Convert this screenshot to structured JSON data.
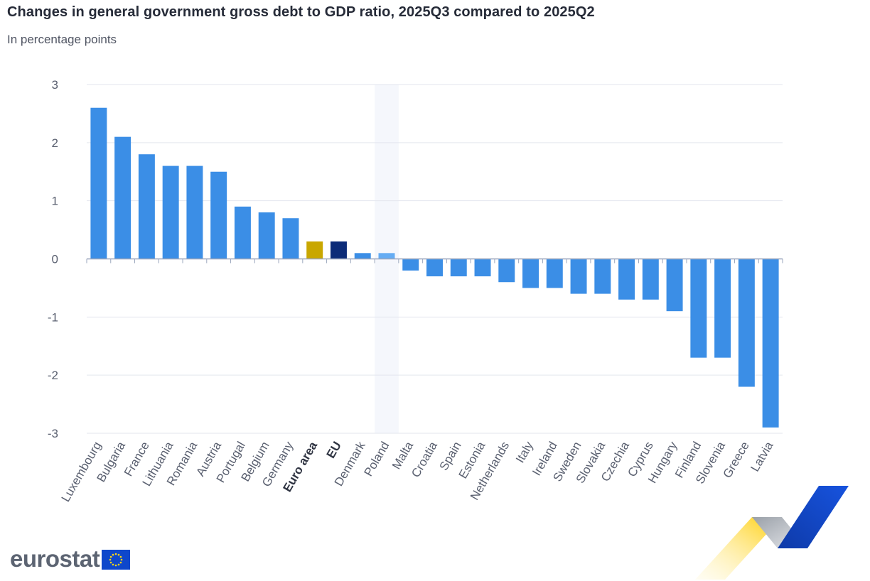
{
  "header": {
    "title": "Changes in general government gross debt to GDP ratio, 2025Q3 compared to 2025Q2",
    "subtitle": "In percentage points"
  },
  "logo": {
    "text": "eurostat"
  },
  "colors": {
    "default_bar": "#3b8ee6",
    "euro_area_bar": "#c9a700",
    "eu_bar": "#0c2b78",
    "highlighted_bar": "#65acf3",
    "grid": "#e3e6ee",
    "axis": "#9aa6bd",
    "highlight_band": "#f5f7fc"
  },
  "chart_data": {
    "type": "bar",
    "title": "Changes in general government gross debt to GDP ratio, 2025Q3 compared to 2025Q2",
    "subtitle": "In percentage points",
    "categories": [
      "Luxembourg",
      "Bulgaria",
      "France",
      "Lithuania",
      "Romania",
      "Austria",
      "Portugal",
      "Belgium",
      "Germany",
      "Euro area",
      "EU",
      "Denmark",
      "Poland",
      "Malta",
      "Croatia",
      "Spain",
      "Estonia",
      "Netherlands",
      "Italy",
      "Ireland",
      "Sweden",
      "Slovakia",
      "Czechia",
      "Cyprus",
      "Hungary",
      "Finland",
      "Slovenia",
      "Greece",
      "Latvia"
    ],
    "values": [
      2.6,
      2.1,
      1.8,
      1.6,
      1.6,
      1.5,
      0.9,
      0.8,
      0.7,
      0.3,
      0.3,
      0.1,
      0.1,
      -0.2,
      -0.3,
      -0.3,
      -0.3,
      -0.4,
      -0.5,
      -0.5,
      -0.6,
      -0.6,
      -0.7,
      -0.7,
      -0.9,
      -1.7,
      -1.7,
      -2.2,
      -2.9
    ],
    "bold_categories": [
      "Euro area",
      "EU"
    ],
    "special_colors": {
      "Euro area": "#c9a700",
      "EU": "#0c2b78"
    },
    "highlighted_category": "Poland",
    "ylim": [
      -3,
      3
    ],
    "yticks": [
      "3",
      "2",
      "1",
      "0",
      "-1",
      "-2",
      "-3"
    ],
    "grid": true,
    "legend": "none"
  }
}
